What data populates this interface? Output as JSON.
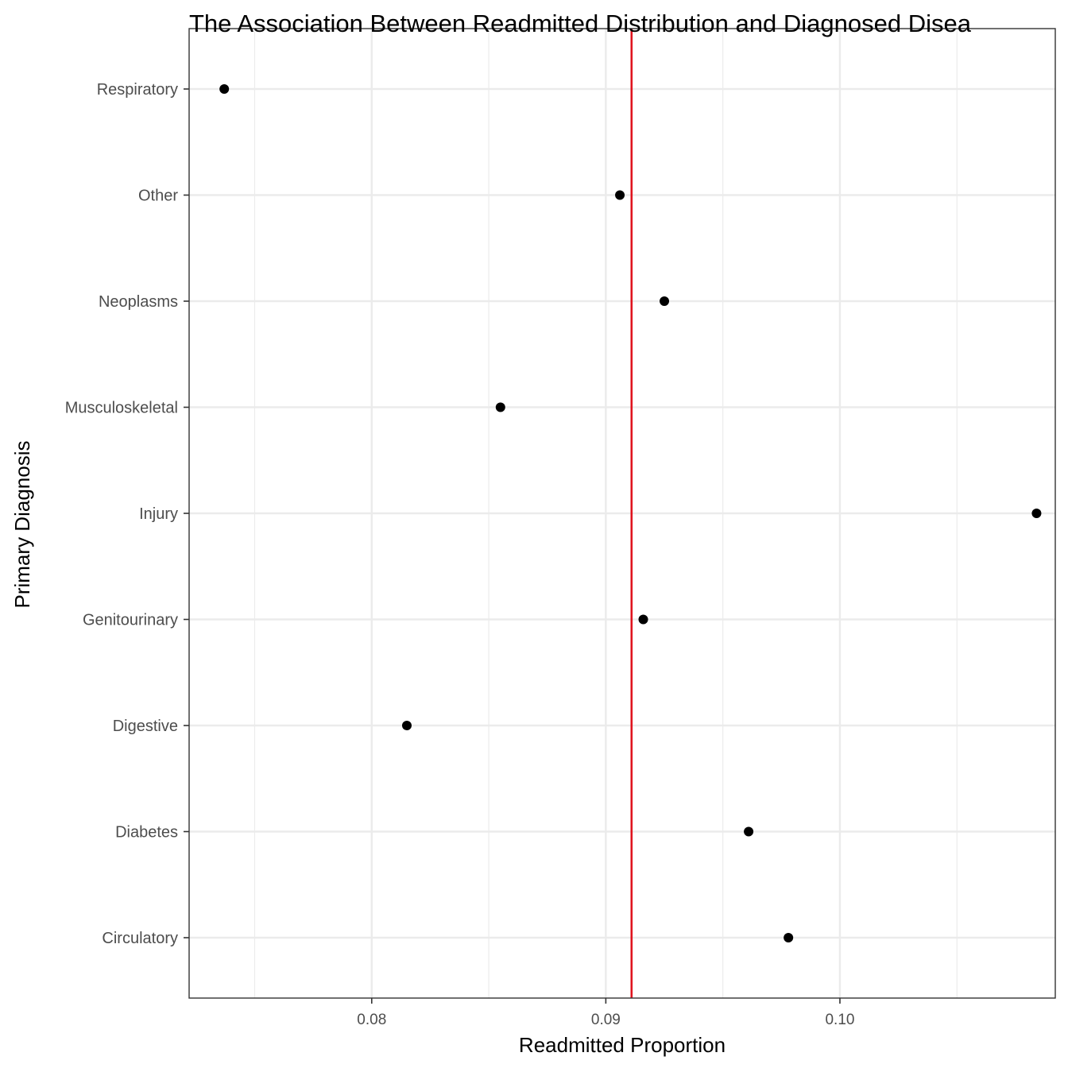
{
  "chart_data": {
    "type": "scatter",
    "title": "The Association Between Readmitted Distribution and Diagnosed Disea",
    "xlabel": "Readmitted Proportion",
    "ylabel": "Primary Diagnosis",
    "xlim": [
      0.0722,
      0.1092
    ],
    "x_ticks": [
      0.08,
      0.09,
      0.1
    ],
    "x_tick_labels": [
      "0.08",
      "0.09",
      "0.10"
    ],
    "categories": [
      "Circulatory",
      "Diabetes",
      "Digestive",
      "Genitourinary",
      "Injury",
      "Musculoskeletal",
      "Neoplasms",
      "Other",
      "Respiratory"
    ],
    "values": [
      0.0978,
      0.0961,
      0.0815,
      0.0916,
      0.1084,
      0.0855,
      0.0925,
      0.0906,
      0.0737
    ],
    "reference_line": {
      "x": 0.0911,
      "color": "#e0141e"
    },
    "point_color": "#000000",
    "grid": true,
    "legend": "none"
  }
}
